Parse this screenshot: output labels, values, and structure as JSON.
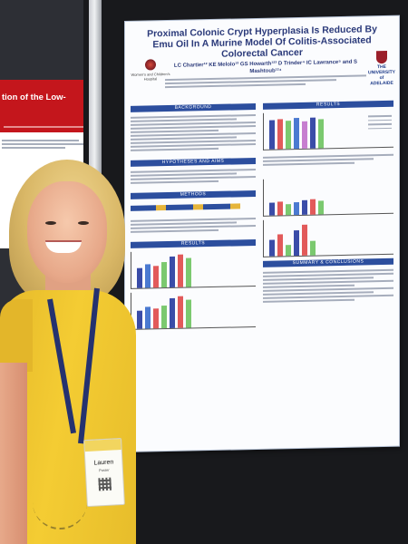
{
  "poster": {
    "title": "Proximal Colonic Crypt Hyperplasia Is Reduced By Emu Oil In A Murine Model Of Colitis-Associated Colorectal Cancer",
    "authors": "LC Chartier¹² KE Melolo¹² GS Howarth¹²³ D Trinder⁴ IC Lawrance⁵ and S Mashtoub¹²⁴",
    "logo_right_text": "THE UNIVERSITY of ADELAIDE",
    "logo_left_text": "Women's and Children's Hospital",
    "sections": {
      "background": "BACKGROUND",
      "results": "RESULTS",
      "hypotheses": "HYPOTHESES AND AIMS",
      "methods": "METHODS",
      "summary": "SUMMARY & CONCLUSIONS"
    }
  },
  "left_poster": {
    "heading": "tion of the Low-"
  },
  "badge": {
    "name": "Lauren",
    "role": "Poster"
  },
  "colors": {
    "poster_bar": "#2c4e9e",
    "shirt": "#f4cc33",
    "red_banner": "#c4161c",
    "lanyard": "#25326f"
  }
}
